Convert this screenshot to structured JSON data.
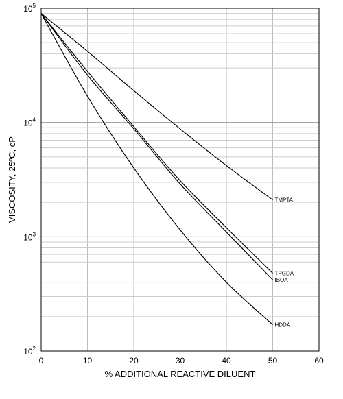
{
  "chart_data": {
    "type": "line",
    "xlabel": "% ADDITIONAL REACTIVE DILUENT",
    "ylabel": "VISCOSITY, 25ºC, cP",
    "xlim": [
      0,
      60
    ],
    "ylim": [
      100,
      100000
    ],
    "y_scale": "log",
    "grid": true,
    "x_ticks": [
      "0",
      "10",
      "20",
      "30",
      "40",
      "50",
      "60"
    ],
    "y_ticks": [
      {
        "base": "10",
        "exp": "5"
      },
      {
        "base": "10",
        "exp": "4"
      },
      {
        "base": "10",
        "exp": "3"
      },
      {
        "base": "10",
        "exp": "2"
      }
    ],
    "series": [
      {
        "name": "TMPTA",
        "x": [
          0,
          10,
          20,
          30,
          40,
          50
        ],
        "y": [
          90000,
          42000,
          19000,
          8800,
          4200,
          2100
        ]
      },
      {
        "name": "TPGDA",
        "x": [
          0,
          10,
          20,
          30,
          40,
          50
        ],
        "y": [
          90000,
          28000,
          9200,
          3100,
          1200,
          480
        ]
      },
      {
        "name": "IBOA",
        "x": [
          0,
          10,
          20,
          30,
          40,
          50
        ],
        "y": [
          90000,
          26000,
          8800,
          2900,
          1100,
          420
        ]
      },
      {
        "name": "HDDA",
        "x": [
          0,
          10,
          20,
          30,
          40,
          50
        ],
        "y": [
          90000,
          17000,
          4000,
          1150,
          400,
          170
        ]
      }
    ]
  }
}
